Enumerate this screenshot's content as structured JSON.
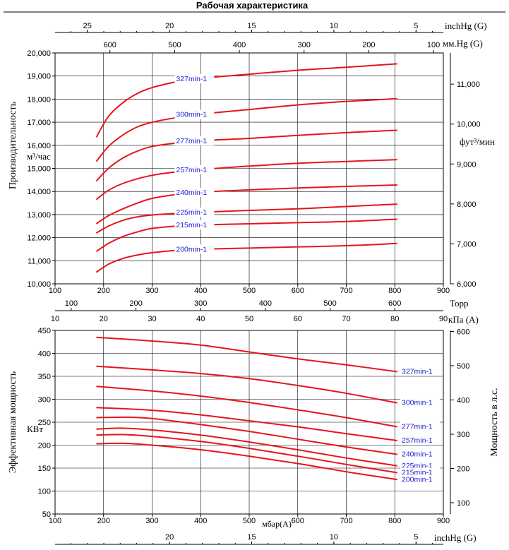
{
  "title": "Рабочая характеристика",
  "chart_data": [
    {
      "type": "line",
      "name": "capacity",
      "xlabel": "",
      "ylabel": "Производительность",
      "y_unit": "м³/час",
      "y2_unit": "фут³/мин",
      "xlim": [
        100,
        900
      ],
      "ylim": [
        10000,
        20000
      ],
      "y2lim": [
        6000,
        11780
      ],
      "x_ticks": [
        100,
        200,
        300,
        400,
        500,
        600,
        700,
        800,
        900
      ],
      "y_ticks": [
        "10,000",
        "11,000",
        "12,000",
        "13,000",
        "14,000",
        "15,000",
        "16,000",
        "17,000",
        "18,000",
        "19,000",
        "20,000"
      ],
      "y2_ticks": [
        "6,000",
        "7,000",
        "8,000",
        "9,000",
        "10,000",
        "11,000"
      ],
      "grid": true,
      "top_axis_inchhg": {
        "label": "inchHg (G)",
        "ticks": [
          "25",
          "20",
          "15",
          "10",
          "5"
        ],
        "values": [
          25,
          20,
          15,
          10,
          5
        ]
      },
      "top_axis_mmhg": {
        "label": "мм.Hg (G)",
        "ticks": [
          "600",
          "500",
          "400",
          "300",
          "200",
          "100"
        ],
        "values": [
          600,
          500,
          400,
          300,
          200,
          100
        ]
      },
      "series": [
        {
          "name": "327min-1",
          "label_at": 390,
          "x": [
            185,
            210,
            240,
            270,
            300,
            350,
            400,
            500,
            600,
            700,
            805
          ],
          "y": [
            16350,
            17250,
            17850,
            18250,
            18500,
            18750,
            18900,
            19080,
            19250,
            19380,
            19530
          ]
        },
        {
          "name": "300min-1",
          "label_at": 390,
          "x": [
            185,
            210,
            240,
            270,
            300,
            350,
            400,
            500,
            600,
            700,
            805
          ],
          "y": [
            15300,
            15950,
            16450,
            16800,
            17000,
            17200,
            17350,
            17550,
            17750,
            17900,
            18020
          ]
        },
        {
          "name": "277min-1",
          "label_at": 390,
          "x": [
            185,
            210,
            240,
            270,
            300,
            350,
            400,
            500,
            600,
            700,
            805
          ],
          "y": [
            14450,
            15000,
            15450,
            15750,
            15950,
            16100,
            16200,
            16300,
            16430,
            16550,
            16650
          ]
        },
        {
          "name": "257min-1",
          "label_at": 390,
          "x": [
            185,
            210,
            240,
            270,
            300,
            350,
            400,
            500,
            600,
            700,
            805
          ],
          "y": [
            13650,
            14050,
            14350,
            14550,
            14700,
            14850,
            14950,
            15100,
            15220,
            15300,
            15380
          ]
        },
        {
          "name": "240min-1",
          "label_at": 390,
          "x": [
            185,
            210,
            240,
            270,
            300,
            350,
            400,
            500,
            600,
            700,
            805
          ],
          "y": [
            12600,
            12950,
            13250,
            13500,
            13700,
            13870,
            13970,
            14070,
            14150,
            14220,
            14280
          ]
        },
        {
          "name": "225min-1",
          "label_at": 390,
          "x": [
            185,
            210,
            240,
            270,
            300,
            350,
            400,
            500,
            600,
            700,
            805
          ],
          "y": [
            12200,
            12500,
            12750,
            12900,
            12980,
            13050,
            13100,
            13180,
            13250,
            13350,
            13450
          ]
        },
        {
          "name": "215min-1",
          "label_at": 390,
          "x": [
            185,
            210,
            240,
            270,
            300,
            350,
            400,
            500,
            600,
            700,
            805
          ],
          "y": [
            11400,
            11750,
            12050,
            12250,
            12400,
            12500,
            12550,
            12600,
            12650,
            12700,
            12800
          ]
        },
        {
          "name": "200min-1",
          "label_at": 390,
          "x": [
            185,
            210,
            240,
            270,
            300,
            350,
            400,
            500,
            600,
            700,
            805
          ],
          "y": [
            10500,
            10850,
            11100,
            11250,
            11350,
            11450,
            11500,
            11550,
            11600,
            11650,
            11750
          ]
        }
      ]
    },
    {
      "type": "line",
      "name": "power",
      "xlabel": "мбар(A)",
      "ylabel": "Эффективная мощность",
      "y_unit": "КВт",
      "y2label": "Мощность в л.с.",
      "xlim": [
        100,
        900
      ],
      "ylim": [
        50,
        450
      ],
      "y2lim": [
        67,
        603
      ],
      "x_ticks": [
        100,
        200,
        300,
        400,
        500,
        600,
        700,
        800,
        900
      ],
      "y_ticks": [
        50,
        100,
        150,
        200,
        250,
        300,
        350,
        400,
        450
      ],
      "y2_ticks": [
        100,
        200,
        300,
        400,
        500,
        600
      ],
      "grid": true,
      "top_axis_torr": {
        "label": "Торр",
        "ticks": [
          "100",
          "200",
          "300",
          "400",
          "500",
          "600"
        ],
        "values": [
          100,
          200,
          300,
          400,
          500,
          600
        ]
      },
      "top_axis_kpa": {
        "label": "кПа (A)",
        "ticks": [
          "10",
          "20",
          "30",
          "40",
          "50",
          "60",
          "70",
          "80",
          "90"
        ],
        "values": [
          10,
          20,
          30,
          40,
          50,
          60,
          70,
          80,
          90
        ]
      },
      "bottom_axis_inchhg": {
        "label": "inchHg (G)",
        "ticks": [
          "20",
          "15",
          "10",
          "5"
        ],
        "values": [
          20,
          15,
          10,
          5
        ]
      },
      "series": [
        {
          "name": "327min-1",
          "x": [
            185,
            300,
            400,
            500,
            600,
            700,
            805
          ],
          "y": [
            435,
            427,
            418,
            403,
            388,
            375,
            360
          ]
        },
        {
          "name": "300min-1",
          "x": [
            185,
            300,
            400,
            500,
            600,
            700,
            805
          ],
          "y": [
            372,
            364,
            356,
            345,
            330,
            313,
            292
          ]
        },
        {
          "name": "277min-1",
          "x": [
            185,
            300,
            400,
            500,
            600,
            700,
            805
          ],
          "y": [
            328,
            318,
            307,
            293,
            277,
            260,
            240
          ]
        },
        {
          "name": "257min-1",
          "x": [
            185,
            300,
            400,
            500,
            600,
            700,
            805
          ],
          "y": [
            282,
            276,
            266,
            253,
            240,
            225,
            210
          ]
        },
        {
          "name": "240min-1",
          "x": [
            185,
            250,
            300,
            400,
            500,
            600,
            700,
            805
          ],
          "y": [
            260,
            261,
            258,
            245,
            230,
            213,
            196,
            180
          ]
        },
        {
          "name": "225min-1",
          "x": [
            185,
            240,
            300,
            400,
            500,
            600,
            700,
            805
          ],
          "y": [
            235,
            237,
            233,
            222,
            207,
            190,
            172,
            155
          ]
        },
        {
          "name": "215min-1",
          "x": [
            185,
            240,
            300,
            400,
            500,
            600,
            700,
            805
          ],
          "y": [
            222,
            223,
            219,
            208,
            193,
            176,
            158,
            140
          ]
        },
        {
          "name": "200min-1",
          "x": [
            185,
            240,
            300,
            400,
            500,
            600,
            700,
            805
          ],
          "y": [
            203,
            204,
            200,
            190,
            176,
            160,
            142,
            125
          ]
        }
      ]
    }
  ]
}
